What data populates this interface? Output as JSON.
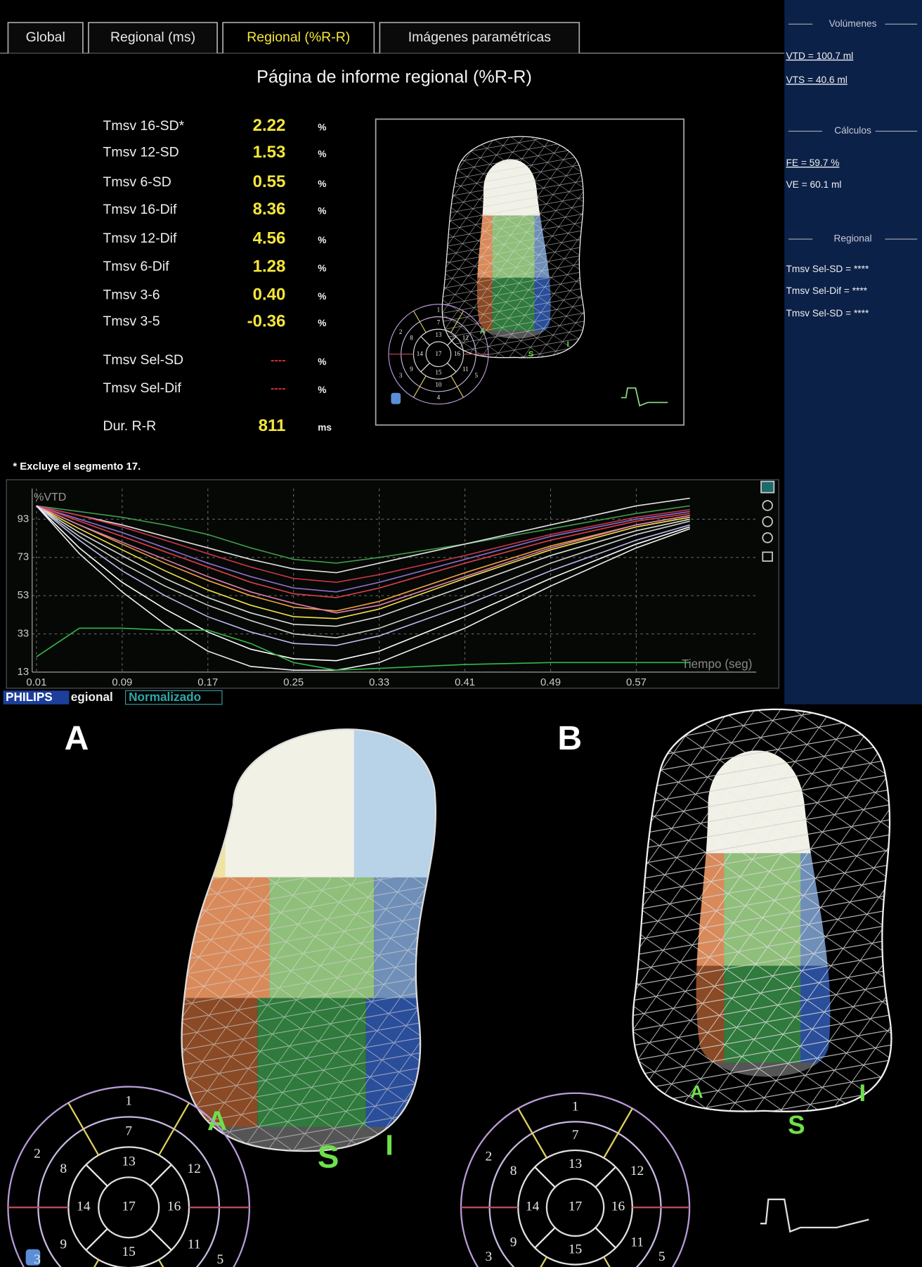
{
  "tabs": [
    "Global",
    "Regional (ms)",
    "Regional (%R-R)",
    "Imágenes paramétricas"
  ],
  "report": {
    "title": "Página de informe regional (%R-R)",
    "rows": [
      [
        "Tmsv 16-SD*",
        "2.22",
        "%"
      ],
      [
        "Tmsv 12-SD",
        "1.53",
        "%"
      ],
      [
        "Tmsv 6-SD",
        "0.55",
        "%"
      ],
      [
        "Tmsv 16-Dif",
        "8.36",
        "%"
      ],
      [
        "Tmsv 12-Dif",
        "4.56",
        "%"
      ],
      [
        "Tmsv 6-Dif",
        "1.28",
        "%"
      ],
      [
        "Tmsv 3-6",
        "0.40",
        "%"
      ],
      [
        "Tmsv 3-5",
        "-0.36",
        "%"
      ],
      [
        "Tmsv Sel-SD",
        "----",
        "%"
      ],
      [
        "Tmsv Sel-Dif",
        "----",
        "%"
      ],
      [
        "Dur. R-R",
        "811",
        "ms"
      ]
    ],
    "footnote": "* Excluye el segmento 17."
  },
  "side_panel": {
    "sections": [
      {
        "heading": "Volúmenes",
        "items": [
          "VTD = 100.7 ml",
          "VTS = 40.6 ml"
        ]
      },
      {
        "heading": "Cálculos",
        "items": [
          "FE = 59.7 %",
          "VE = 60.1 ml"
        ]
      },
      {
        "heading": "Regional",
        "items": [
          "Tmsv Sel-SD = ****",
          "Tmsv Sel-Dif = ****",
          "Tmsv Sel-SD = ****"
        ]
      }
    ]
  },
  "chart_data": {
    "type": "line",
    "y_label": "%VTD",
    "x_label": "Tiempo (seg)",
    "x": [
      0.01,
      0.05,
      0.09,
      0.13,
      0.17,
      0.21,
      0.25,
      0.29,
      0.33,
      0.41,
      0.49,
      0.57,
      0.62
    ],
    "xlim": [
      0.006,
      0.682
    ],
    "xticks": [
      0.01,
      0.09,
      0.17,
      0.25,
      0.33,
      0.41,
      0.49,
      0.57
    ],
    "ylim": [
      13,
      109
    ],
    "yticks": [
      13,
      33,
      53,
      73,
      93
    ],
    "grid": true,
    "series": [
      {
        "color": "#3f9a4a",
        "values": [
          100,
          97,
          94,
          90,
          85,
          78,
          72,
          70,
          73,
          80,
          88,
          96,
          100
        ]
      },
      {
        "color": "#e0e0e0",
        "values": [
          100,
          95,
          90,
          84,
          78,
          72,
          67,
          65,
          70,
          80,
          90,
          100,
          104
        ]
      },
      {
        "color": "#c8344a",
        "values": [
          100,
          95,
          89,
          82,
          75,
          68,
          62,
          60,
          64,
          74,
          85,
          94,
          98
        ]
      },
      {
        "color": "#8a6fd0",
        "values": [
          100,
          93,
          86,
          78,
          70,
          63,
          57,
          55,
          60,
          72,
          84,
          93,
          97
        ]
      },
      {
        "color": "#d8404a",
        "values": [
          100,
          92,
          84,
          76,
          68,
          60,
          54,
          52,
          57,
          70,
          82,
          92,
          96
        ]
      },
      {
        "color": "#f0a040",
        "values": [
          100,
          90,
          80,
          70,
          61,
          53,
          47,
          45,
          50,
          65,
          79,
          90,
          95
        ]
      },
      {
        "color": "#f2e24a",
        "values": [
          100,
          88,
          77,
          66,
          56,
          48,
          42,
          41,
          46,
          62,
          77,
          89,
          94
        ]
      },
      {
        "color": "#e080b0",
        "values": [
          100,
          90,
          81,
          72,
          63,
          55,
          49,
          44,
          48,
          63,
          78,
          90,
          95
        ]
      },
      {
        "color": "#dcdcdc",
        "values": [
          100,
          86,
          74,
          62,
          52,
          44,
          38,
          37,
          42,
          58,
          74,
          87,
          93
        ]
      },
      {
        "color": "#cfcfcf",
        "values": [
          100,
          84,
          70,
          58,
          48,
          40,
          33,
          31,
          36,
          52,
          70,
          85,
          92
        ]
      },
      {
        "color": "#bdbdf0",
        "values": [
          100,
          82,
          66,
          53,
          42,
          34,
          28,
          27,
          32,
          48,
          66,
          82,
          90
        ]
      },
      {
        "color": "#ffffff",
        "values": [
          100,
          78,
          60,
          46,
          34,
          25,
          20,
          19,
          24,
          42,
          62,
          80,
          89
        ]
      },
      {
        "color": "#f0f0f0",
        "values": [
          100,
          75,
          55,
          38,
          24,
          16,
          14,
          14,
          18,
          36,
          58,
          78,
          88
        ]
      },
      {
        "color": "#35b84a",
        "values": [
          21,
          36,
          36,
          35,
          35,
          28,
          18,
          14,
          15,
          17,
          18,
          18,
          18
        ]
      }
    ]
  },
  "footer": {
    "brand": "PHILIPS",
    "mode": "egional",
    "view": "Normalizado"
  },
  "panels": [
    "A",
    "B"
  ],
  "views": [
    {
      "orientation": [
        "A",
        "S",
        "I"
      ],
      "segments": [
        "1",
        "2",
        "3",
        "4",
        "5",
        "7",
        "8",
        "9",
        "10",
        "11",
        "12",
        "13",
        "14",
        "15",
        "16",
        "17"
      ]
    },
    {
      "orientation": [
        "A",
        "S",
        "I"
      ],
      "segments": [
        "1",
        "2",
        "3",
        "4",
        "5",
        "7",
        "8",
        "9",
        "10",
        "11",
        "12",
        "13",
        "14",
        "15",
        "16",
        "17"
      ]
    },
    {
      "orientation": [
        "A",
        "S",
        "I"
      ],
      "segments": [
        "1",
        "2",
        "3",
        "4",
        "5",
        "7",
        "8",
        "9",
        "10",
        "11",
        "12",
        "13",
        "14",
        "15",
        "16",
        "17"
      ]
    }
  ]
}
